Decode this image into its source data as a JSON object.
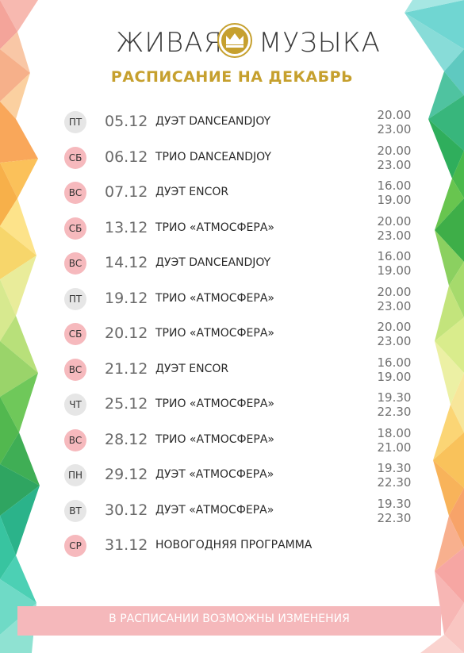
{
  "header": {
    "title_left": "ЖИВАЯ",
    "title_right": "МУЗЫКА",
    "subtitle": "РАСПИСАНИЕ НА ДЕКАБРЬ",
    "logo_icon": "crown-icon",
    "accent_color": "#c6a02e"
  },
  "colors": {
    "weekday_badge": "#e6e6e6",
    "weekend_badge": "#f6b9bd",
    "footer_bar": "#f5b8bb"
  },
  "schedule": [
    {
      "day": "ПТ",
      "date": "05.12",
      "event": "ДУЭТ DANCEANDJOY",
      "time_start": "20.00",
      "time_end": "23.00",
      "weekend": false
    },
    {
      "day": "СБ",
      "date": "06.12",
      "event": "ТРИО DANCEANDJOY",
      "time_start": "20.00",
      "time_end": "23.00",
      "weekend": true
    },
    {
      "day": "ВС",
      "date": "07.12",
      "event": "ДУЭТ ENCOR",
      "time_start": "16.00",
      "time_end": "19.00",
      "weekend": true
    },
    {
      "day": "СБ",
      "date": "13.12",
      "event": "ТРИО «АТМОСФЕРА»",
      "time_start": "20.00",
      "time_end": "23.00",
      "weekend": true
    },
    {
      "day": "ВС",
      "date": "14.12",
      "event": "ДУЭТ DANCEANDJOY",
      "time_start": "16.00",
      "time_end": "19.00",
      "weekend": true
    },
    {
      "day": "ПТ",
      "date": "19.12",
      "event": "ТРИО «АТМОСФЕРА»",
      "time_start": "20.00",
      "time_end": "23.00",
      "weekend": false
    },
    {
      "day": "СБ",
      "date": "20.12",
      "event": "ТРИО «АТМОСФЕРА»",
      "time_start": "20.00",
      "time_end": "23.00",
      "weekend": true
    },
    {
      "day": "ВС",
      "date": "21.12",
      "event": "ДУЭТ ENCOR",
      "time_start": "16.00",
      "time_end": "19.00",
      "weekend": true
    },
    {
      "day": "ЧТ",
      "date": "25.12",
      "event": "ТРИО «АТМОСФЕРА»",
      "time_start": "19.30",
      "time_end": "22.30",
      "weekend": false
    },
    {
      "day": "ВС",
      "date": "28.12",
      "event": "ТРИО «АТМОСФЕРА»",
      "time_start": "18.00",
      "time_end": "21.00",
      "weekend": true
    },
    {
      "day": "ПН",
      "date": "29.12",
      "event": "ДУЭТ «АТМОСФЕРА»",
      "time_start": "19.30",
      "time_end": "22.30",
      "weekend": false
    },
    {
      "day": "ВТ",
      "date": "30.12",
      "event": "ДУЭТ «АТМОСФЕРА»",
      "time_start": "19.30",
      "time_end": "22.30",
      "weekend": false
    },
    {
      "day": "СР",
      "date": "31.12",
      "event": "НОВОГОДНЯЯ ПРОГРАММА",
      "time_start": "",
      "time_end": "",
      "weekend": true
    }
  ],
  "footer": {
    "note": "В РАСПИСАНИИ ВОЗМОЖНЫ ИЗМЕНЕНИЯ"
  }
}
